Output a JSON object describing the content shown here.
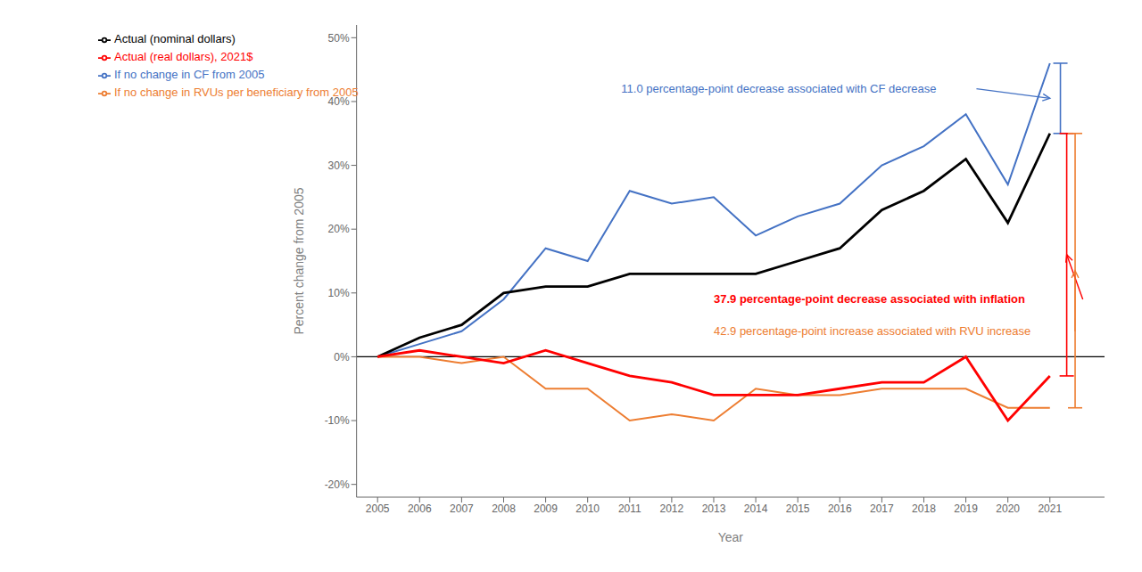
{
  "chart_data": {
    "type": "line",
    "x_label": "Year",
    "y_label": "Percent change from 2005",
    "x": [
      2005,
      2006,
      2007,
      2008,
      2009,
      2010,
      2011,
      2012,
      2013,
      2014,
      2015,
      2016,
      2017,
      2018,
      2019,
      2020,
      2021
    ],
    "series": [
      {
        "name": "If no change in CF from 2005",
        "color": "#4472C4",
        "values": [
          0,
          2,
          4,
          9,
          17,
          15,
          26,
          24,
          25,
          19,
          22,
          24,
          30,
          33,
          38,
          27,
          46
        ]
      },
      {
        "name": "Actual (nominal dollars)",
        "color": "#000000",
        "values": [
          0,
          3,
          5,
          10,
          11,
          11,
          13,
          13,
          13,
          13,
          15,
          17,
          23,
          26,
          31,
          21,
          35
        ]
      },
      {
        "name": "If no change in RVUs per beneficiary from 2005",
        "color": "#ED7D31",
        "values": [
          0,
          0,
          -1,
          0,
          -5,
          -5,
          -10,
          -9,
          -10,
          -5,
          -6,
          -6,
          -5,
          -5,
          -5,
          -8,
          -8
        ]
      },
      {
        "name": "Actual (real dollars), 2021$",
        "color": "#FF0000",
        "values": [
          0,
          1,
          0,
          -1,
          1,
          -1,
          -3,
          -4,
          -6,
          -6,
          -6,
          -5,
          -4,
          -4,
          0,
          -10,
          -3
        ]
      }
    ],
    "xlim": [
      2004.5,
      2022.3
    ],
    "xticks": [
      2005,
      2006,
      2007,
      2008,
      2009,
      2010,
      2011,
      2012,
      2013,
      2014,
      2015,
      2016,
      2017,
      2018,
      2019,
      2020,
      2021
    ],
    "ylim": [
      -22,
      52
    ],
    "yticks": [
      {
        "value": -20,
        "label": "-20%"
      },
      {
        "value": -10,
        "label": "-10%"
      },
      {
        "value": 0,
        "label": "0%"
      },
      {
        "value": 10,
        "label": "10%"
      },
      {
        "value": 20,
        "label": "20%"
      },
      {
        "value": 30,
        "label": "30%"
      },
      {
        "value": 40,
        "label": "40%"
      },
      {
        "value": 50,
        "label": "50%"
      }
    ],
    "grid": false,
    "legend": "upper left",
    "annotations": [
      {
        "text": "11.0 percentage-point decrease associated with CF decrease",
        "color": "#4472C4"
      },
      {
        "text": "37.9 percentage-point decrease associated with inflation",
        "color": "#FF0000"
      },
      {
        "text": "42.9 percentage-point increase associated with RVU increase",
        "color": "#ED7D31"
      }
    ]
  }
}
